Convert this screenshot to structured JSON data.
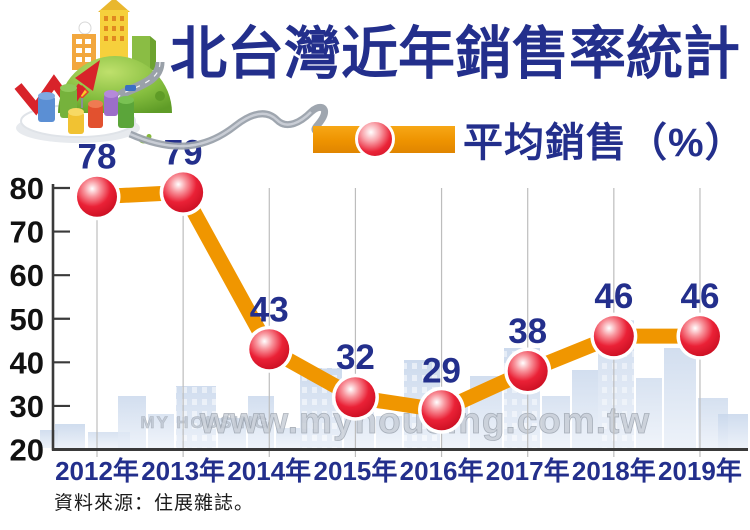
{
  "title": "北台灣近年銷售率統計",
  "legend": {
    "label": "平均銷售（%）"
  },
  "source_note": "資料來源：住展雜誌。",
  "watermark": {
    "url_text": "www.myhousing.com.tw",
    "logo_text": "MY HOUSING"
  },
  "colors": {
    "navy": "#232F8C",
    "orange": "#F09600",
    "ball_red": "#E3192B",
    "axis": "#3a3a3a",
    "grid": "#bdbdbd",
    "tick_label": "#111111",
    "skyline": "#d3deef",
    "watermark_fill": "#c6ccd5",
    "watermark_stroke": "#98a0ab"
  },
  "chart_data": {
    "type": "line",
    "title": "北台灣近年銷售率統計",
    "categories": [
      "2012年",
      "2013年",
      "2014年",
      "2015年",
      "2016年",
      "2017年",
      "2018年",
      "2019年"
    ],
    "series": [
      {
        "name": "平均銷售（%）",
        "values": [
          78,
          79,
          43,
          32,
          29,
          38,
          46,
          46
        ]
      }
    ],
    "ylim": [
      20,
      80
    ],
    "yticks": [
      20,
      30,
      40,
      50,
      60,
      70,
      80
    ],
    "grid": "vertical-only",
    "legend_position": "top",
    "marker": "glossy-red-ball",
    "line_style": "thick-orange"
  }
}
